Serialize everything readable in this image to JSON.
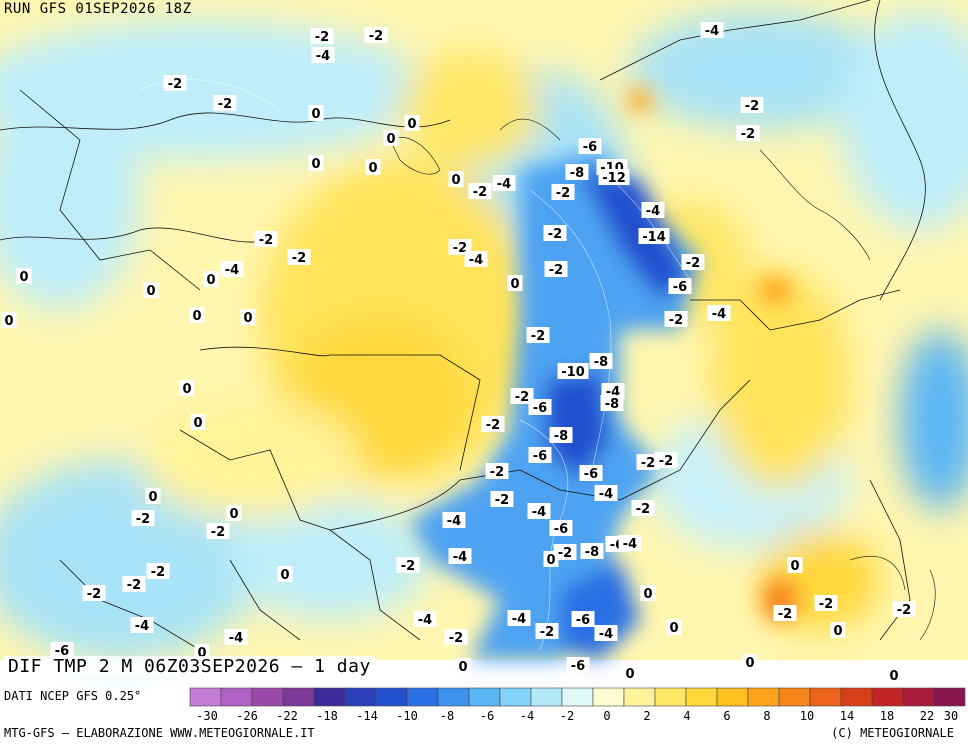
{
  "header": {
    "run": "RUN GFS 01SEP2026 18Z"
  },
  "map_title": "DIF TMP 2 M 06Z03SEP2026 – 1 day",
  "source": "DATI NCEP GFS 0.25°",
  "credit": "MTG-GFS – ELABORAZIONE WWW.METEOGIORNALE.IT",
  "copyright": "(C) METEOGIORNALE",
  "legend": {
    "ticks": [
      "-30",
      "-26",
      "-22",
      "-18",
      "-14",
      "-10",
      "-8",
      "-6",
      "-4",
      "-2",
      "0",
      "2",
      "4",
      "6",
      "8",
      "10",
      "14",
      "18",
      "22",
      "30"
    ],
    "colors": [
      "#c57cd4",
      "#b062c4",
      "#9a4aa8",
      "#7e3a98",
      "#3c2c9a",
      "#2a3fb8",
      "#2350cf",
      "#2b6fe4",
      "#3e92ef",
      "#5ab5f5",
      "#83d3f8",
      "#b3eaf9",
      "#e2f9fb",
      "#fffbd0",
      "#fff39a",
      "#ffe766",
      "#ffd83a",
      "#ffc020",
      "#ffa41a",
      "#f7861a",
      "#ec6319",
      "#d9401a",
      "#c42424",
      "#a81c3a",
      "#8a1650"
    ]
  },
  "value_labels": [
    {
      "t": "-2"
    },
    {
      "t": "-4"
    },
    {
      "t": "-2"
    },
    {
      "t": "-2"
    },
    {
      "t": "0"
    },
    {
      "t": "0"
    },
    {
      "t": "0"
    },
    {
      "t": "0"
    },
    {
      "t": "0"
    },
    {
      "t": "-2"
    },
    {
      "t": "-4"
    },
    {
      "t": "-2"
    },
    {
      "t": "-6"
    },
    {
      "t": "-8"
    },
    {
      "t": "-10"
    },
    {
      "t": "-12"
    },
    {
      "t": "-4"
    },
    {
      "t": "-4"
    },
    {
      "t": "-14"
    },
    {
      "t": "-2"
    },
    {
      "t": "-6"
    },
    {
      "t": "-2"
    },
    {
      "t": "-4"
    },
    {
      "t": "-2"
    },
    {
      "t": "-2"
    },
    {
      "t": "0"
    },
    {
      "t": "-2"
    },
    {
      "t": "-2"
    },
    {
      "t": "0"
    },
    {
      "t": "0"
    },
    {
      "t": "0"
    },
    {
      "t": "0"
    },
    {
      "t": "-2"
    },
    {
      "t": "-4"
    },
    {
      "t": "-2"
    },
    {
      "t": "-2"
    },
    {
      "t": "-8"
    },
    {
      "t": "-10"
    },
    {
      "t": "-4"
    },
    {
      "t": "-8"
    },
    {
      "t": "-2"
    },
    {
      "t": "-6"
    },
    {
      "t": "-8"
    },
    {
      "t": "-6"
    },
    {
      "t": "-6"
    },
    {
      "t": "-2"
    },
    {
      "t": "-2"
    },
    {
      "t": "-4"
    },
    {
      "t": "-2"
    },
    {
      "t": "-4"
    },
    {
      "t": "-4"
    },
    {
      "t": "-6"
    },
    {
      "t": "-2"
    },
    {
      "t": "-8"
    },
    {
      "t": "-6"
    },
    {
      "t": "-4"
    },
    {
      "t": "-4"
    },
    {
      "t": "-2"
    },
    {
      "t": "-6"
    },
    {
      "t": "-2"
    },
    {
      "t": "-4"
    },
    {
      "t": "-2"
    },
    {
      "t": "-4"
    },
    {
      "t": "-6"
    },
    {
      "t": "0"
    },
    {
      "t": "0"
    },
    {
      "t": "0"
    },
    {
      "t": "0"
    },
    {
      "t": "0"
    },
    {
      "t": "-2"
    },
    {
      "t": "-2"
    },
    {
      "t": "0"
    },
    {
      "t": "0"
    },
    {
      "t": "-2"
    },
    {
      "t": "0"
    },
    {
      "t": "-2"
    },
    {
      "t": "0"
    },
    {
      "t": "-2"
    },
    {
      "t": "0"
    },
    {
      "t": "0"
    },
    {
      "t": "0"
    },
    {
      "t": "0"
    },
    {
      "t": "-2"
    },
    {
      "t": "0"
    },
    {
      "t": "-4"
    },
    {
      "t": "-2"
    },
    {
      "t": "-2"
    },
    {
      "t": "0"
    },
    {
      "t": "-2"
    },
    {
      "t": "-2"
    },
    {
      "t": "-4"
    },
    {
      "t": "-4"
    },
    {
      "t": "-6"
    },
    {
      "t": "-2"
    },
    {
      "t": "-2"
    },
    {
      "t": "-4"
    },
    {
      "t": "-2"
    },
    {
      "t": "0"
    },
    {
      "t": "0"
    },
    {
      "t": "0"
    },
    {
      "t": "-4"
    }
  ]
}
